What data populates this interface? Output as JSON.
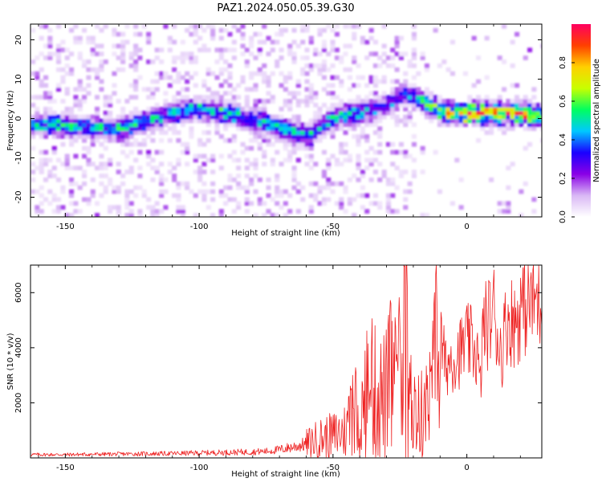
{
  "title": "PAZ1.2024.050.05.39.G30",
  "chart_data": [
    {
      "type": "heatmap",
      "xlabel": "Height of straight line (km)",
      "ylabel": "Frequency (Hz)",
      "xlim": [
        -163,
        28
      ],
      "ylim": [
        -25,
        24
      ],
      "xticks": [
        -150,
        -100,
        -50,
        0
      ],
      "yticks": [
        -20,
        -10,
        0,
        10,
        20
      ],
      "colorbar": {
        "label": "Normalized spectral amplitude",
        "range": [
          0,
          1
        ],
        "ticks": [
          "0.0",
          "0.2",
          "0.4",
          "0.6",
          "0.8"
        ],
        "colormap": [
          "#ffffff",
          "#d9b8f5",
          "#8a00e6",
          "#1a00ff",
          "#00c8ff",
          "#00ff60",
          "#c8ff00",
          "#ffd000",
          "#ff4000",
          "#ff0060"
        ]
      },
      "ridge": {
        "x": [
          -163,
          -150,
          -140,
          -130,
          -120,
          -110,
          -100,
          -90,
          -80,
          -70,
          -60,
          -50,
          -40,
          -30,
          -25,
          -20,
          -15,
          -10,
          0,
          10,
          20,
          28
        ],
        "frequency": [
          -2,
          -2,
          -3,
          -3,
          -1,
          1,
          2,
          1,
          -1,
          -3,
          -5,
          0,
          1,
          3,
          6,
          5,
          3,
          1,
          1,
          1,
          1,
          0
        ],
        "amplitude": [
          0.5,
          0.55,
          0.5,
          0.55,
          0.5,
          0.5,
          0.55,
          0.55,
          0.5,
          0.6,
          0.5,
          0.55,
          0.45,
          0.4,
          0.4,
          0.45,
          0.6,
          0.75,
          0.95,
          0.9,
          0.95,
          0.7
        ]
      },
      "grid": false
    },
    {
      "type": "line",
      "xlabel": "Height of straight line (km)",
      "ylabel": "SNR (10 * v/v)",
      "xlim": [
        -163,
        28
      ],
      "ylim": [
        0,
        7000
      ],
      "xticks": [
        -150,
        -100,
        -50,
        0
      ],
      "yticks": [
        2000,
        4000,
        6000
      ],
      "series": [
        {
          "color": "#ee2222",
          "x": [
            -163,
            -150,
            -140,
            -130,
            -120,
            -110,
            -100,
            -90,
            -80,
            -75,
            -70,
            -65,
            -60,
            -55,
            -50,
            -45,
            -42,
            -38,
            -36,
            -34,
            -32,
            -30,
            -28,
            -26,
            -24,
            -23.2,
            -22,
            -20,
            -18,
            -15,
            -13,
            -11,
            -10,
            -8,
            -6,
            -4,
            -2,
            0,
            2,
            4,
            5,
            6,
            8,
            10,
            12,
            13,
            15,
            18,
            20,
            22,
            25,
            28
          ],
          "y": [
            120,
            120,
            130,
            140,
            150,
            160,
            180,
            200,
            220,
            240,
            300,
            400,
            500,
            700,
            800,
            1000,
            1300,
            1700,
            2500,
            2300,
            2200,
            2300,
            3000,
            2500,
            2400,
            6950,
            2200,
            1800,
            1500,
            1700,
            2200,
            4600,
            4400,
            3300,
            3600,
            3700,
            3900,
            4200,
            4100,
            3700,
            2400,
            4700,
            4900,
            5400,
            4200,
            3800,
            5100,
            4900,
            5400,
            5600,
            5750,
            5700
          ]
        }
      ],
      "grid": false
    }
  ]
}
